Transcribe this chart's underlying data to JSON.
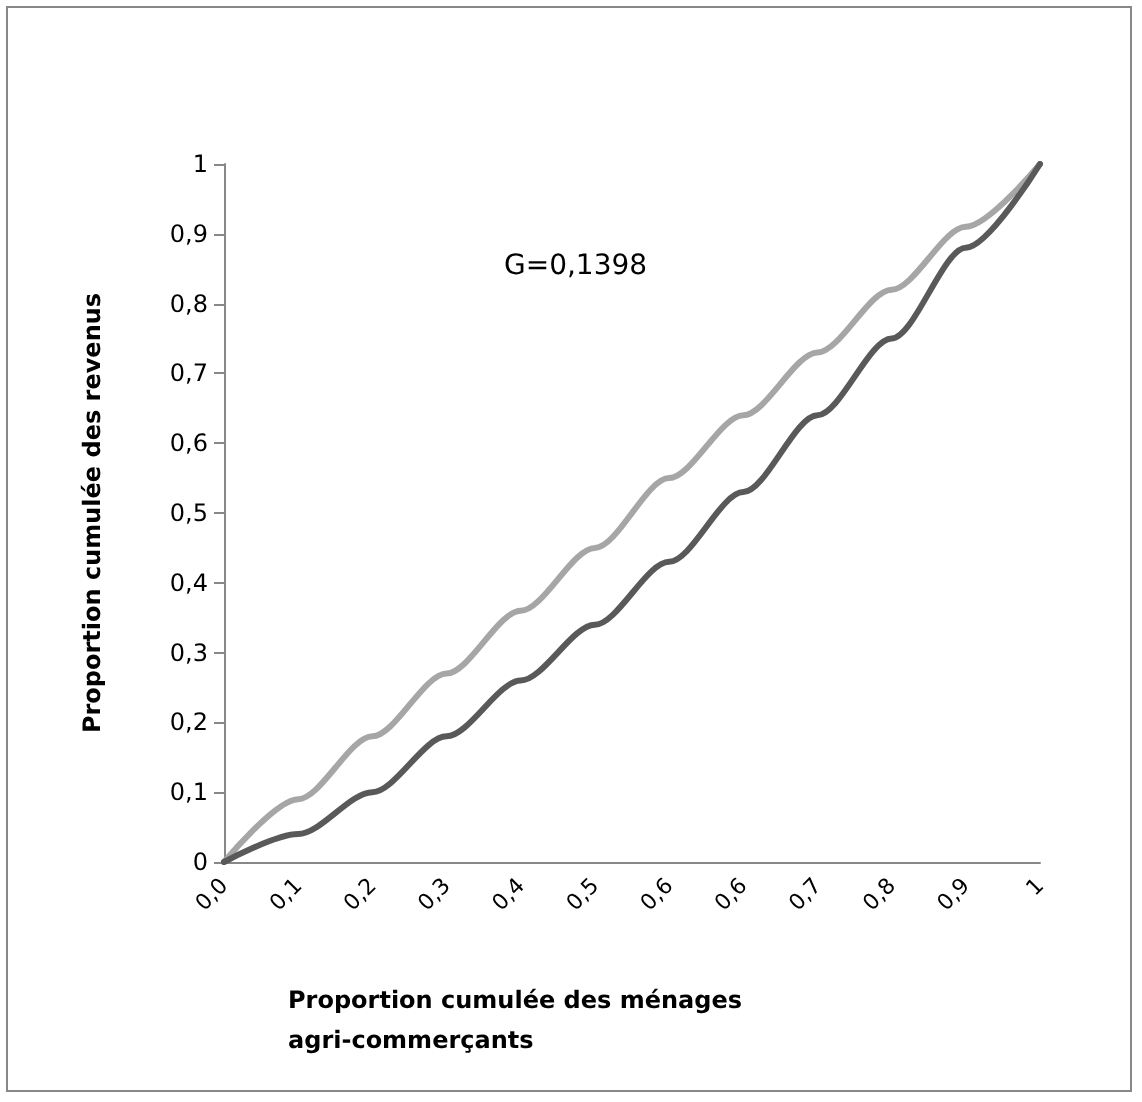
{
  "chart_data": {
    "type": "line",
    "xlabel": "Proportion cumulée des ménages agri-commerçants",
    "ylabel": "Proportion cumulée des revenus",
    "annotations": [
      "G=0,1398"
    ],
    "categories": [
      "0,0",
      "0,1",
      "0,2",
      "0,3",
      "0,4",
      "0,5",
      "0,6",
      "0,6",
      "0,7",
      "0,8",
      "0,9",
      "1"
    ],
    "series": [
      {
        "color": "#a6a6a6",
        "values": [
          0,
          0.09,
          0.18,
          0.27,
          0.36,
          0.45,
          0.55,
          0.64,
          0.73,
          0.82,
          0.91,
          1
        ]
      },
      {
        "color": "#595959",
        "values": [
          0,
          0.04,
          0.1,
          0.18,
          0.26,
          0.34,
          0.43,
          0.53,
          0.64,
          0.75,
          0.88,
          1
        ]
      }
    ],
    "ylim": [
      0,
      1
    ],
    "yticks": [
      0,
      {
        "value": 0.1,
        "label": "0,1"
      },
      {
        "value": 0.2,
        "label": "0,2"
      },
      {
        "value": 0.3,
        "label": "0,3"
      },
      {
        "value": 0.4,
        "label": "0,4"
      },
      {
        "value": 0.5,
        "label": "0,5"
      },
      {
        "value": 0.6,
        "label": "0,6"
      },
      {
        "value": 0.7,
        "label": "0,7"
      },
      {
        "value": 0.8,
        "label": "0,8"
      },
      {
        "value": 0.9,
        "label": "0,9"
      },
      1
    ],
    "grid": false,
    "marker": "none"
  }
}
